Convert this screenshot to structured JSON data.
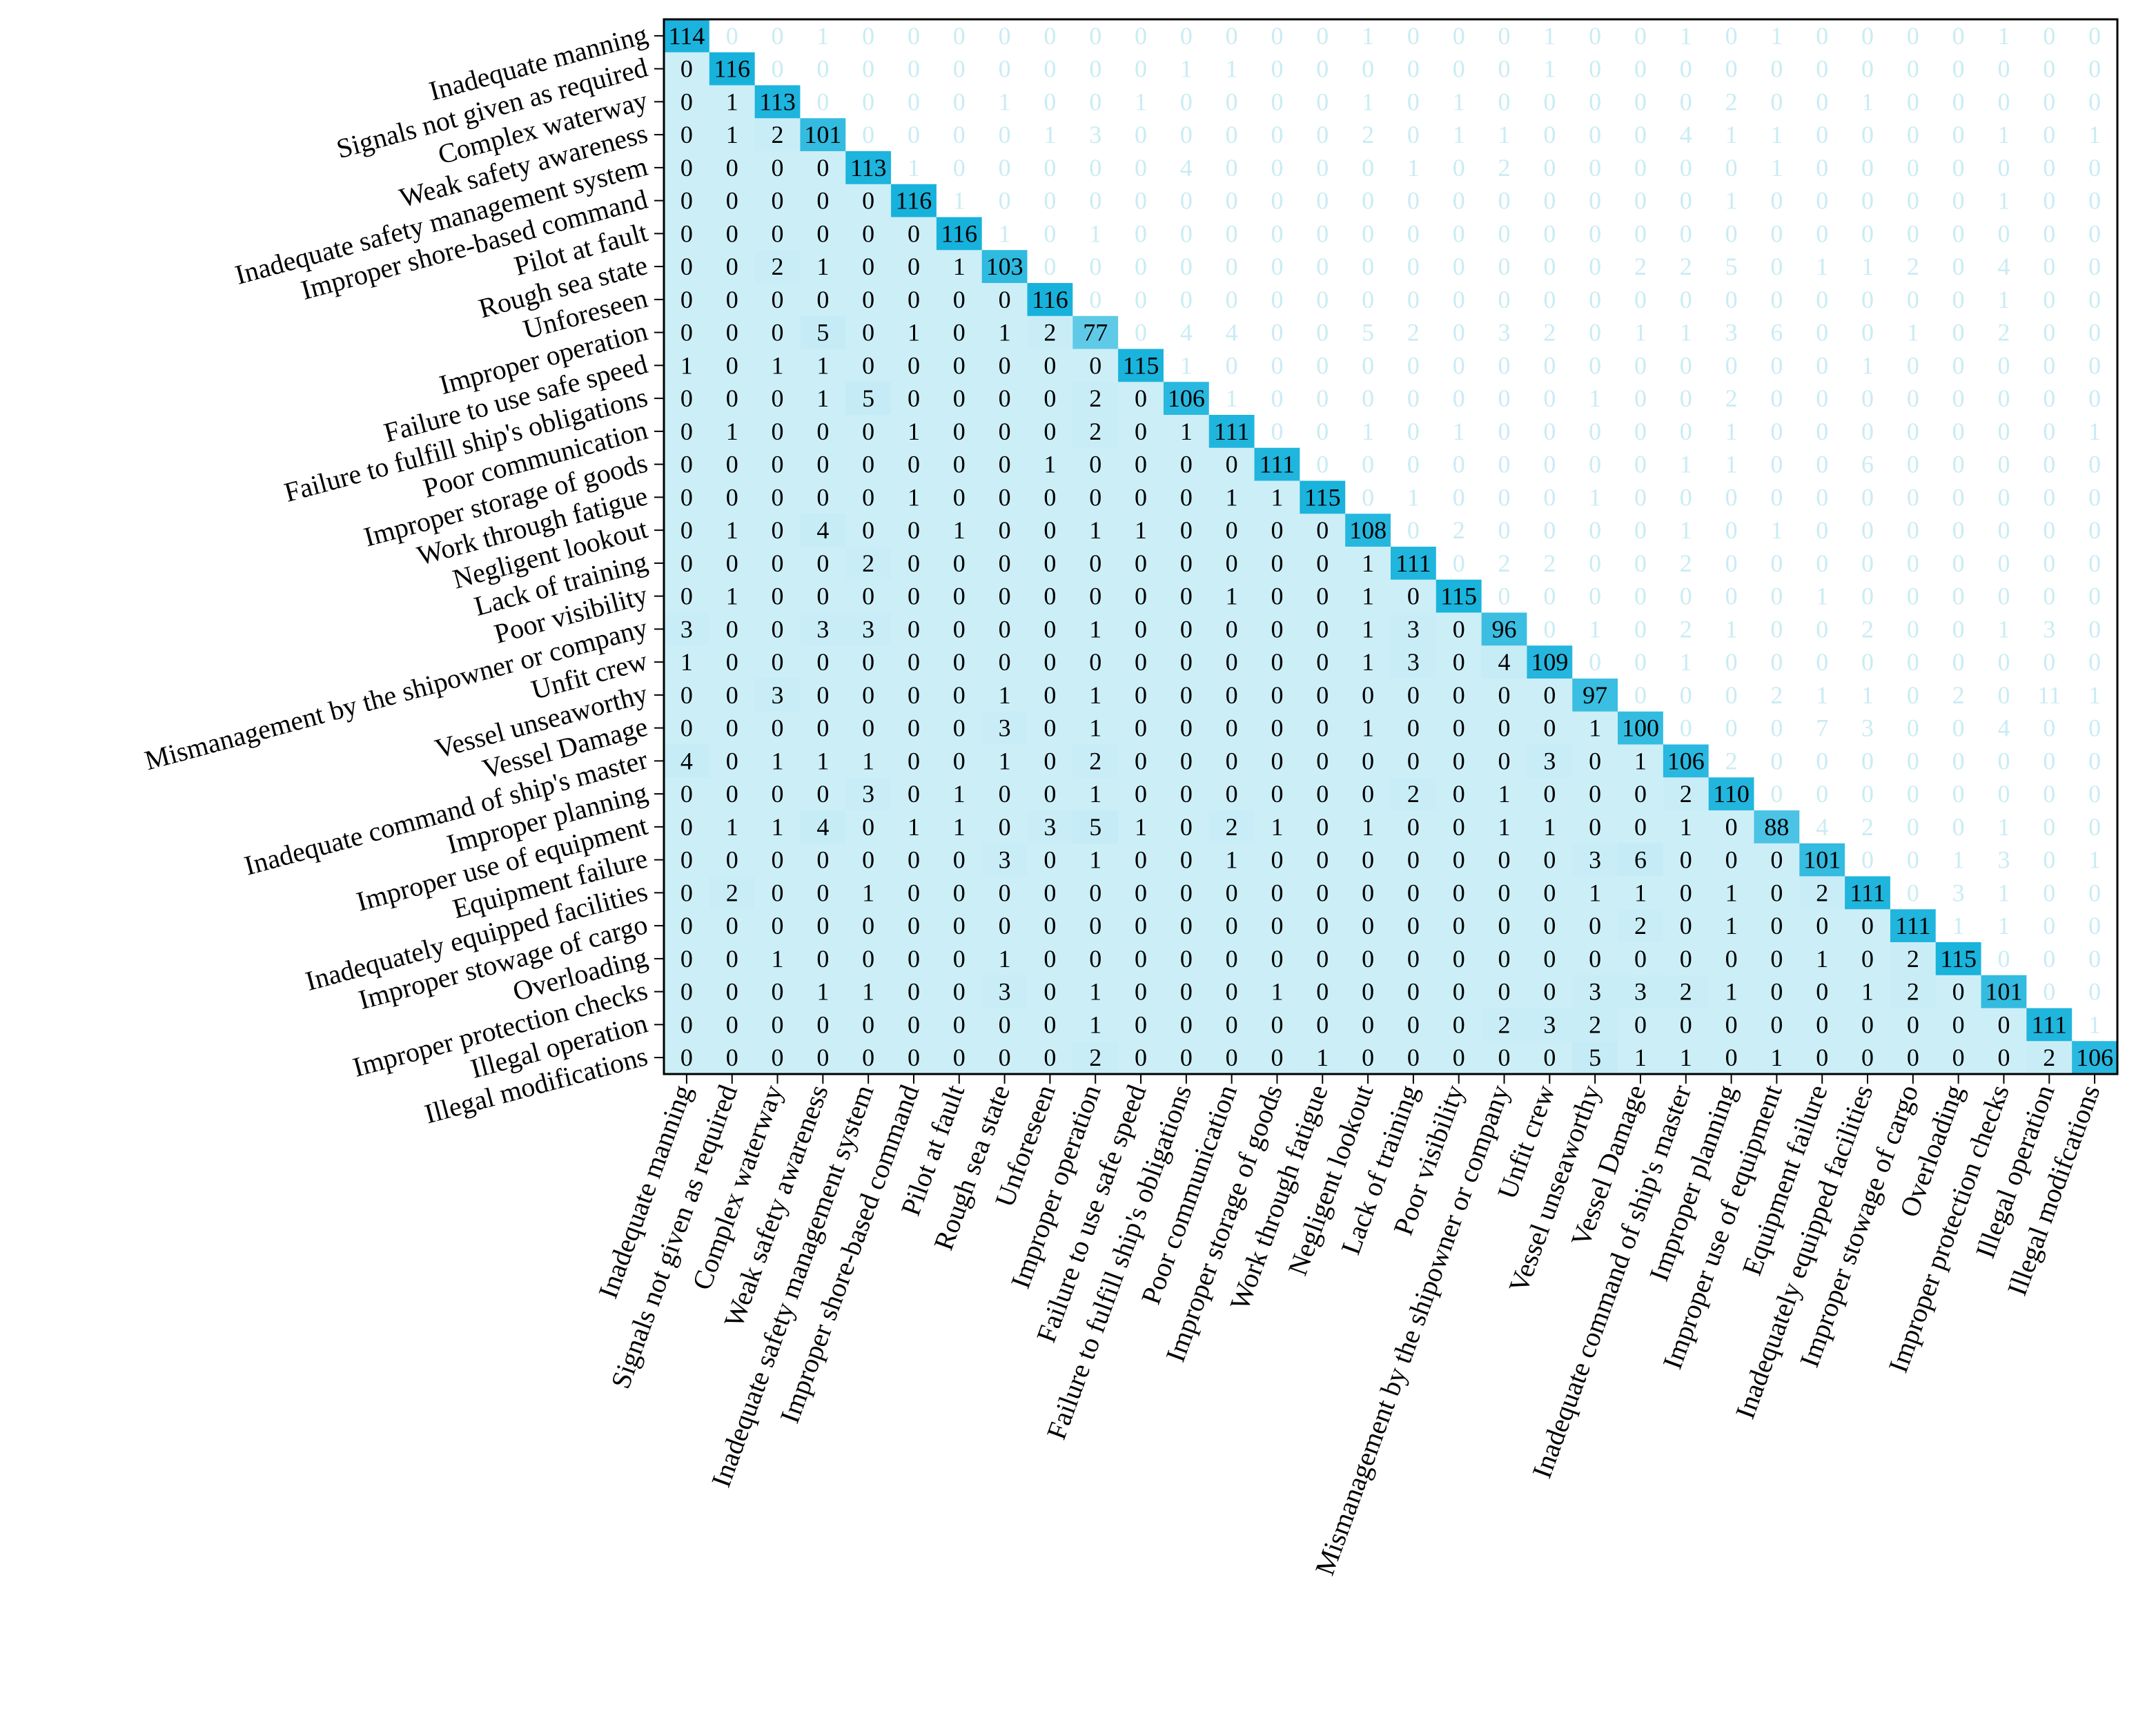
{
  "chart_data": {
    "type": "heatmap",
    "title": "",
    "xlabel": "",
    "ylabel": "",
    "colorscale": {
      "low": "#ffffff",
      "high": "#17b2dc"
    },
    "vmax": 116,
    "categories": [
      "Inadequate manning",
      "Signals not given as required",
      "Complex waterway",
      "Weak safety awareness",
      "Inadequate safety management system",
      "Improper shore-based command",
      "Pilot at fault",
      "Rough sea state",
      "Unforeseen",
      "Improper operation",
      "Failure to use safe speed",
      "Failure to fulfill ship's obligations",
      "Poor communication",
      "Improper storage of goods",
      "Work through fatigue",
      "Negligent lookout",
      "Lack of training",
      "Poor visibility",
      "Mismanagement by the shipowner or company",
      "Unfit crew",
      "Vessel unseaworthy",
      "Vessel Damage",
      "Inadequate command of ship's master",
      "Improper planning",
      "Improper use of equipment",
      "Equipment failure",
      "Inadequately equipped facilities",
      "Improper stowage of cargo",
      "Overloading",
      "Improper protection checks",
      "Illegal operation",
      "Illegal modifications"
    ],
    "x_tick_labels": [
      "Inadequate manning",
      "Signals not given as required",
      "Complex waterway",
      "Weak safety awareness",
      "Inadequate safety management system",
      "Improper shore-based command",
      "Pilot at fault",
      "Rough sea state",
      "Unforeseen",
      "Improper operation",
      "Failure to use safe speed",
      "Failure to fulfill ship's obligations",
      "Poor communication",
      "Improper storage of goods",
      "Work through fatigue",
      "Negligent lookout",
      "Lack of training",
      "Poor visibility",
      "Mismanagement by the shipowner or company",
      "Unfit crew",
      "Vessel unseaworthy",
      "Vessel Damage",
      "Inadequate command of ship's master",
      "Improper planning",
      "Improper use of equipment",
      "Equipment failure",
      "Inadequately equipped facilities",
      "Improper stowage of cargo",
      "Overloading",
      "Improper protection checks",
      "Illegal operation",
      "Illegal modifcations"
    ],
    "lower_triangle_full_color": true,
    "upper_triangle_faded": true,
    "matrix": [
      [
        114,
        0,
        0,
        1,
        0,
        0,
        0,
        0,
        0,
        0,
        0,
        0,
        0,
        0,
        0,
        1,
        0,
        0,
        0,
        1,
        0,
        0,
        1,
        0,
        1,
        0,
        0,
        0,
        0,
        1,
        0,
        0
      ],
      [
        0,
        116,
        0,
        0,
        0,
        0,
        0,
        0,
        0,
        0,
        0,
        1,
        1,
        0,
        0,
        0,
        0,
        0,
        0,
        1,
        0,
        0,
        0,
        0,
        0,
        0,
        0,
        0,
        0,
        0,
        0,
        0
      ],
      [
        0,
        1,
        113,
        0,
        0,
        0,
        0,
        1,
        0,
        0,
        1,
        0,
        0,
        0,
        0,
        1,
        0,
        1,
        0,
        0,
        0,
        0,
        0,
        2,
        0,
        0,
        1,
        0,
        0,
        0,
        0,
        0
      ],
      [
        0,
        1,
        2,
        101,
        0,
        0,
        0,
        0,
        1,
        3,
        0,
        0,
        0,
        0,
        0,
        2,
        0,
        1,
        1,
        0,
        0,
        0,
        4,
        1,
        1,
        0,
        0,
        0,
        0,
        1,
        0,
        1
      ],
      [
        0,
        0,
        0,
        0,
        113,
        1,
        0,
        0,
        0,
        0,
        0,
        4,
        0,
        0,
        0,
        0,
        1,
        0,
        2,
        0,
        0,
        0,
        0,
        0,
        1,
        0,
        0,
        0,
        0,
        0,
        0,
        0
      ],
      [
        0,
        0,
        0,
        0,
        0,
        116,
        1,
        0,
        0,
        0,
        0,
        0,
        0,
        0,
        0,
        0,
        0,
        0,
        0,
        0,
        0,
        0,
        0,
        1,
        0,
        0,
        0,
        0,
        0,
        1,
        0,
        0
      ],
      [
        0,
        0,
        0,
        0,
        0,
        0,
        116,
        1,
        0,
        1,
        0,
        0,
        0,
        0,
        0,
        0,
        0,
        0,
        0,
        0,
        0,
        0,
        0,
        0,
        0,
        0,
        0,
        0,
        0,
        0,
        0,
        0
      ],
      [
        0,
        0,
        2,
        1,
        0,
        0,
        1,
        103,
        0,
        0,
        0,
        0,
        0,
        0,
        0,
        0,
        0,
        0,
        0,
        0,
        0,
        2,
        2,
        5,
        0,
        1,
        1,
        2,
        0,
        4,
        0,
        0
      ],
      [
        0,
        0,
        0,
        0,
        0,
        0,
        0,
        0,
        116,
        0,
        0,
        0,
        0,
        0,
        0,
        0,
        0,
        0,
        0,
        0,
        0,
        0,
        0,
        0,
        0,
        0,
        0,
        0,
        0,
        1,
        0,
        0
      ],
      [
        0,
        0,
        0,
        5,
        0,
        1,
        0,
        1,
        2,
        77,
        0,
        4,
        4,
        0,
        0,
        5,
        2,
        0,
        3,
        2,
        0,
        1,
        1,
        3,
        6,
        0,
        0,
        1,
        0,
        2,
        0,
        0
      ],
      [
        1,
        0,
        1,
        1,
        0,
        0,
        0,
        0,
        0,
        0,
        115,
        1,
        0,
        0,
        0,
        0,
        0,
        0,
        0,
        0,
        0,
        0,
        0,
        0,
        0,
        0,
        1,
        0,
        0,
        0,
        0,
        0
      ],
      [
        0,
        0,
        0,
        1,
        5,
        0,
        0,
        0,
        0,
        2,
        0,
        106,
        1,
        0,
        0,
        0,
        0,
        0,
        0,
        0,
        1,
        0,
        0,
        2,
        0,
        0,
        0,
        0,
        0,
        0,
        0,
        0
      ],
      [
        0,
        1,
        0,
        0,
        0,
        1,
        0,
        0,
        0,
        2,
        0,
        1,
        111,
        0,
        0,
        1,
        0,
        1,
        0,
        0,
        0,
        0,
        0,
        1,
        0,
        0,
        0,
        0,
        0,
        0,
        0,
        1
      ],
      [
        0,
        0,
        0,
        0,
        0,
        0,
        0,
        0,
        1,
        0,
        0,
        0,
        0,
        111,
        0,
        0,
        0,
        0,
        0,
        0,
        0,
        0,
        1,
        1,
        0,
        0,
        6,
        0,
        0,
        0,
        0,
        0
      ],
      [
        0,
        0,
        0,
        0,
        0,
        1,
        0,
        0,
        0,
        0,
        0,
        0,
        1,
        1,
        115,
        0,
        1,
        0,
        0,
        0,
        1,
        0,
        0,
        0,
        0,
        0,
        0,
        0,
        0,
        0,
        0,
        0
      ],
      [
        0,
        1,
        0,
        4,
        0,
        0,
        1,
        0,
        0,
        1,
        1,
        0,
        0,
        0,
        0,
        108,
        0,
        2,
        0,
        0,
        0,
        0,
        1,
        0,
        1,
        0,
        0,
        0,
        0,
        0,
        0,
        0
      ],
      [
        0,
        0,
        0,
        0,
        2,
        0,
        0,
        0,
        0,
        0,
        0,
        0,
        0,
        0,
        0,
        1,
        111,
        0,
        2,
        2,
        0,
        0,
        2,
        0,
        0,
        0,
        0,
        0,
        0,
        0,
        0,
        0
      ],
      [
        0,
        1,
        0,
        0,
        0,
        0,
        0,
        0,
        0,
        0,
        0,
        0,
        1,
        0,
        0,
        1,
        0,
        115,
        0,
        0,
        0,
        0,
        0,
        0,
        0,
        1,
        0,
        0,
        0,
        0,
        0,
        0
      ],
      [
        3,
        0,
        0,
        3,
        3,
        0,
        0,
        0,
        0,
        1,
        0,
        0,
        0,
        0,
        0,
        1,
        3,
        0,
        96,
        0,
        1,
        0,
        2,
        1,
        0,
        0,
        2,
        0,
        0,
        1,
        3,
        0
      ],
      [
        1,
        0,
        0,
        0,
        0,
        0,
        0,
        0,
        0,
        0,
        0,
        0,
        0,
        0,
        0,
        1,
        3,
        0,
        4,
        109,
        0,
        0,
        1,
        0,
        0,
        0,
        0,
        0,
        0,
        0,
        0,
        0
      ],
      [
        0,
        0,
        3,
        0,
        0,
        0,
        0,
        1,
        0,
        1,
        0,
        0,
        0,
        0,
        0,
        0,
        0,
        0,
        0,
        0,
        97,
        0,
        0,
        0,
        2,
        1,
        1,
        0,
        2,
        0,
        11,
        1
      ],
      [
        0,
        0,
        0,
        0,
        0,
        0,
        0,
        3,
        0,
        1,
        0,
        0,
        0,
        0,
        0,
        1,
        0,
        0,
        0,
        0,
        1,
        100,
        0,
        0,
        0,
        7,
        3,
        0,
        0,
        4,
        0,
        0
      ],
      [
        4,
        0,
        1,
        1,
        1,
        0,
        0,
        1,
        0,
        2,
        0,
        0,
        0,
        0,
        0,
        0,
        0,
        0,
        0,
        3,
        0,
        1,
        106,
        2,
        0,
        0,
        0,
        0,
        0,
        0,
        0,
        0
      ],
      [
        0,
        0,
        0,
        0,
        3,
        0,
        1,
        0,
        0,
        1,
        0,
        0,
        0,
        0,
        0,
        0,
        2,
        0,
        1,
        0,
        0,
        0,
        2,
        110,
        0,
        0,
        0,
        0,
        0,
        0,
        0,
        0
      ],
      [
        0,
        1,
        1,
        4,
        0,
        1,
        1,
        0,
        3,
        5,
        1,
        0,
        2,
        1,
        0,
        1,
        0,
        0,
        1,
        1,
        0,
        0,
        1,
        0,
        88,
        4,
        2,
        0,
        0,
        1,
        0,
        0
      ],
      [
        0,
        0,
        0,
        0,
        0,
        0,
        0,
        3,
        0,
        1,
        0,
        0,
        1,
        0,
        0,
        0,
        0,
        0,
        0,
        0,
        3,
        6,
        0,
        0,
        0,
        101,
        0,
        0,
        1,
        3,
        0,
        1
      ],
      [
        0,
        2,
        0,
        0,
        1,
        0,
        0,
        0,
        0,
        0,
        0,
        0,
        0,
        0,
        0,
        0,
        0,
        0,
        0,
        0,
        1,
        1,
        0,
        1,
        0,
        2,
        111,
        0,
        3,
        1,
        0,
        0
      ],
      [
        0,
        0,
        0,
        0,
        0,
        0,
        0,
        0,
        0,
        0,
        0,
        0,
        0,
        0,
        0,
        0,
        0,
        0,
        0,
        0,
        0,
        2,
        0,
        1,
        0,
        0,
        0,
        111,
        1,
        1,
        0,
        0
      ],
      [
        0,
        0,
        1,
        0,
        0,
        0,
        0,
        1,
        0,
        0,
        0,
        0,
        0,
        0,
        0,
        0,
        0,
        0,
        0,
        0,
        0,
        0,
        0,
        0,
        0,
        1,
        0,
        2,
        115,
        0,
        0,
        0
      ],
      [
        0,
        0,
        0,
        1,
        1,
        0,
        0,
        3,
        0,
        1,
        0,
        0,
        0,
        1,
        0,
        0,
        0,
        0,
        0,
        0,
        3,
        3,
        2,
        1,
        0,
        0,
        1,
        2,
        0,
        101,
        0,
        0
      ],
      [
        0,
        0,
        0,
        0,
        0,
        0,
        0,
        0,
        0,
        1,
        0,
        0,
        0,
        0,
        0,
        0,
        0,
        0,
        2,
        3,
        2,
        0,
        0,
        0,
        0,
        0,
        0,
        0,
        0,
        0,
        111,
        1
      ],
      [
        0,
        0,
        0,
        0,
        0,
        0,
        0,
        0,
        0,
        2,
        0,
        0,
        0,
        0,
        1,
        0,
        0,
        0,
        0,
        0,
        5,
        1,
        1,
        0,
        1,
        0,
        0,
        0,
        0,
        0,
        2,
        106
      ]
    ]
  }
}
